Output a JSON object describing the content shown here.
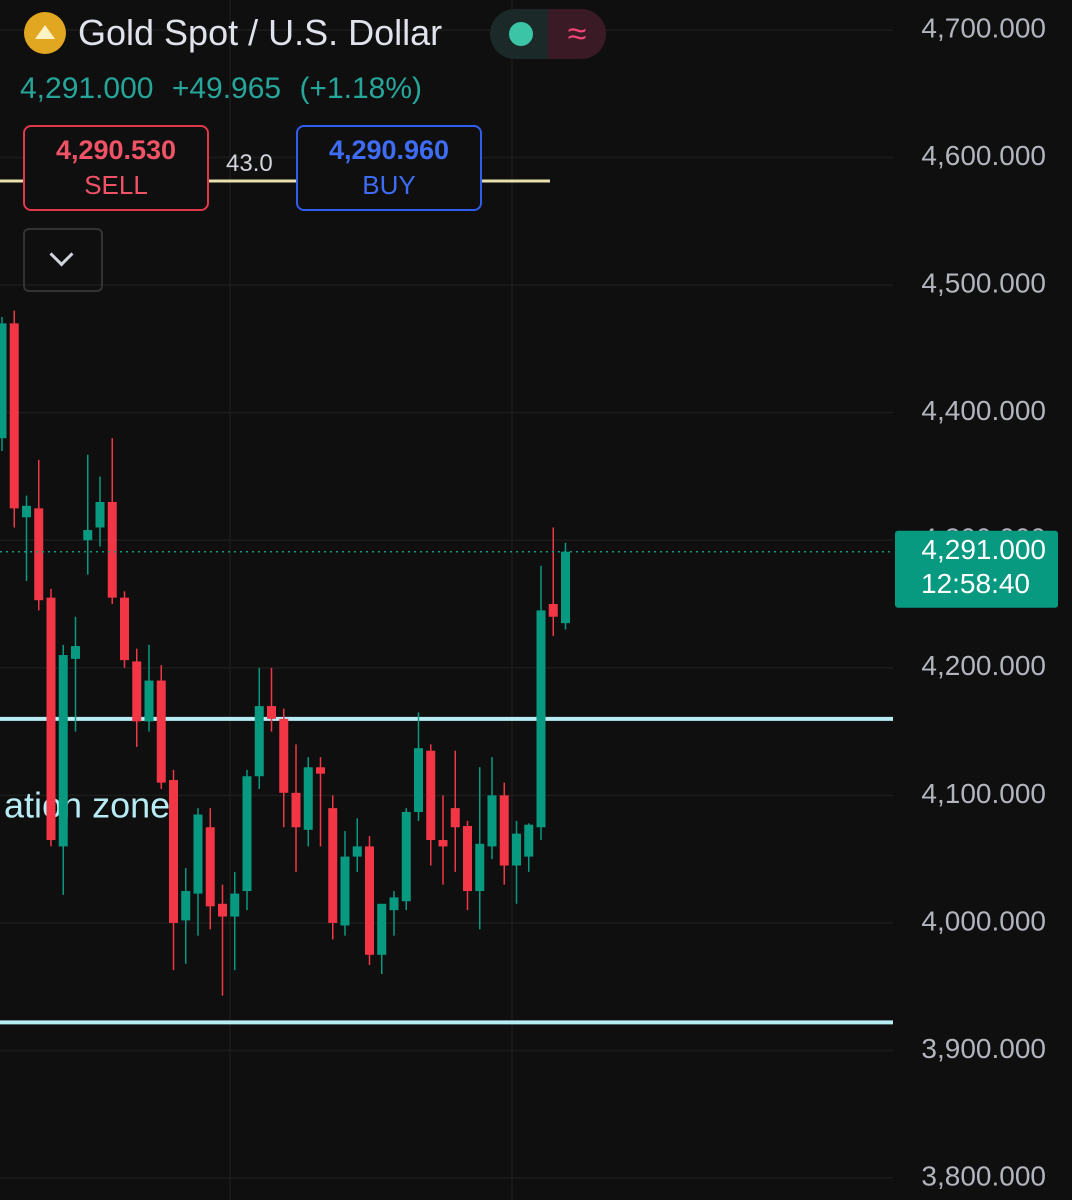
{
  "chart_data": {
    "type": "candlestick",
    "title": "Gold Spot / U.S. Dollar",
    "price": "4,291.000",
    "change": "+49.965",
    "change_pct": "(+1.18%)",
    "sell_price": "4,290.530",
    "sell_label": "SELL",
    "buy_price": "4,290.960",
    "buy_label": "BUY",
    "spread": "43.0",
    "annotation": "ation zone",
    "up_color": "#089981",
    "down_color": "#f23645",
    "ylim": [
      3782.8,
      4723.5
    ],
    "yticks": [
      {
        "value": 4700,
        "label": "4,700.000"
      },
      {
        "value": 4600,
        "label": "4,600.000"
      },
      {
        "value": 4500,
        "label": "4,500.000"
      },
      {
        "value": 4400,
        "label": "4,400.000"
      },
      {
        "value": 4300,
        "label": "4,300.000"
      },
      {
        "value": 4200,
        "label": "4,200.000"
      },
      {
        "value": 4100,
        "label": "4,100.000"
      },
      {
        "value": 4000,
        "label": "4,000.000"
      },
      {
        "value": 3900,
        "label": "3,900.000"
      },
      {
        "value": 3800,
        "label": "3,800.000"
      }
    ],
    "grid": true,
    "last": {
      "value": 4291,
      "label": "4,291.000",
      "countdown": "12:58:40",
      "color": "#089981"
    },
    "levels": {
      "values": [
        4160,
        3922
      ],
      "color": "#b8ecf5"
    },
    "open": [
      4380,
      4470,
      4318,
      4325,
      4255,
      4060,
      4207,
      4300,
      4310,
      4330,
      4255,
      4205,
      4158,
      4190,
      4112,
      4002,
      4023,
      4075,
      4015,
      4005,
      4025,
      4115,
      4170,
      4160,
      4102,
      4073,
      4122,
      4090,
      3998,
      4052,
      4060,
      3975,
      4010,
      4017,
      4087,
      4135,
      4065,
      4090,
      4076,
      4025,
      4060,
      4100,
      4045,
      4052,
      4075,
      4250,
      4235
    ],
    "high": [
      4475,
      4480,
      4335,
      4363,
      4262,
      4218,
      4240,
      4367,
      4350,
      4380,
      4260,
      4215,
      4218,
      4202,
      4120,
      4043,
      4090,
      4090,
      4030,
      4040,
      4120,
      4200,
      4200,
      4168,
      4140,
      4130,
      4130,
      4100,
      4072,
      4082,
      4068,
      4015,
      4025,
      4090,
      4165,
      4140,
      4100,
      4135,
      4080,
      4122,
      4130,
      4110,
      4080,
      4078,
      4280,
      4310,
      4298
    ],
    "low": [
      4370,
      4310,
      4268,
      4245,
      4060,
      4022,
      4150,
      4273,
      4295,
      4250,
      4200,
      4138,
      4150,
      4105,
      3963,
      3968,
      3990,
      3995,
      3943,
      3963,
      4010,
      4105,
      4150,
      4075,
      4040,
      4060,
      4060,
      3987,
      3990,
      4040,
      3967,
      3960,
      3990,
      4010,
      4080,
      4045,
      4030,
      4040,
      4010,
      3995,
      4050,
      4030,
      4015,
      4040,
      4065,
      4225,
      4230
    ],
    "close": [
      4470,
      4325,
      4327,
      4253,
      4065,
      4210,
      4217,
      4308,
      4330,
      4255,
      4206,
      4158,
      4190,
      4110,
      4000,
      4025,
      4085,
      4013,
      4005,
      4023,
      4115,
      4170,
      4160,
      4102,
      4075,
      4122,
      4117,
      4000,
      4052,
      4060,
      3975,
      4015,
      4020,
      4087,
      4137,
      4065,
      4060,
      4075,
      4025,
      4062,
      4100,
      4045,
      4070,
      4077,
      4245,
      4240,
      4291
    ]
  }
}
